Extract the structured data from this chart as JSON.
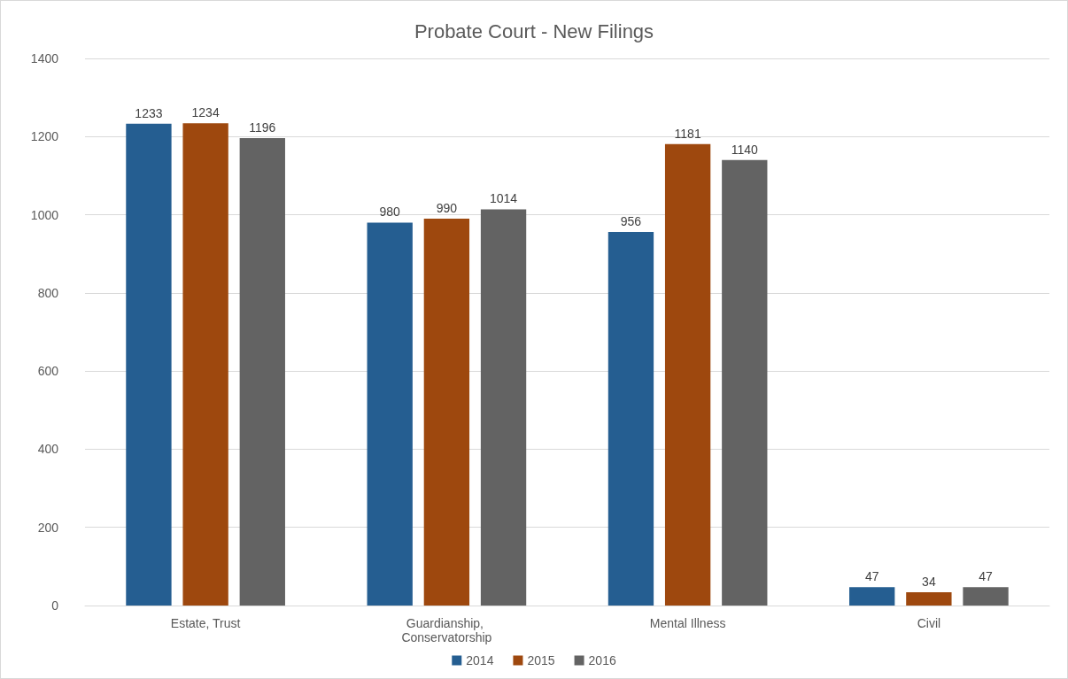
{
  "chart_data": {
    "type": "bar",
    "title": "Probate Court - New Filings",
    "categories": [
      "Estate, Trust",
      "Guardianship, Conservatorship",
      "Mental Illness",
      "Civil"
    ],
    "series": [
      {
        "name": "2014",
        "color": "#255e91",
        "values": [
          1233,
          980,
          956,
          47
        ]
      },
      {
        "name": "2015",
        "color": "#9e480e",
        "values": [
          1234,
          990,
          1181,
          34
        ]
      },
      {
        "name": "2016",
        "color": "#636363",
        "values": [
          1196,
          1014,
          1140,
          47
        ]
      }
    ],
    "ylim": [
      0,
      1400
    ],
    "yticks": [
      0,
      200,
      400,
      600,
      800,
      1000,
      1200,
      1400
    ],
    "grid": "y",
    "legend": "bottom",
    "data_labels": true
  }
}
